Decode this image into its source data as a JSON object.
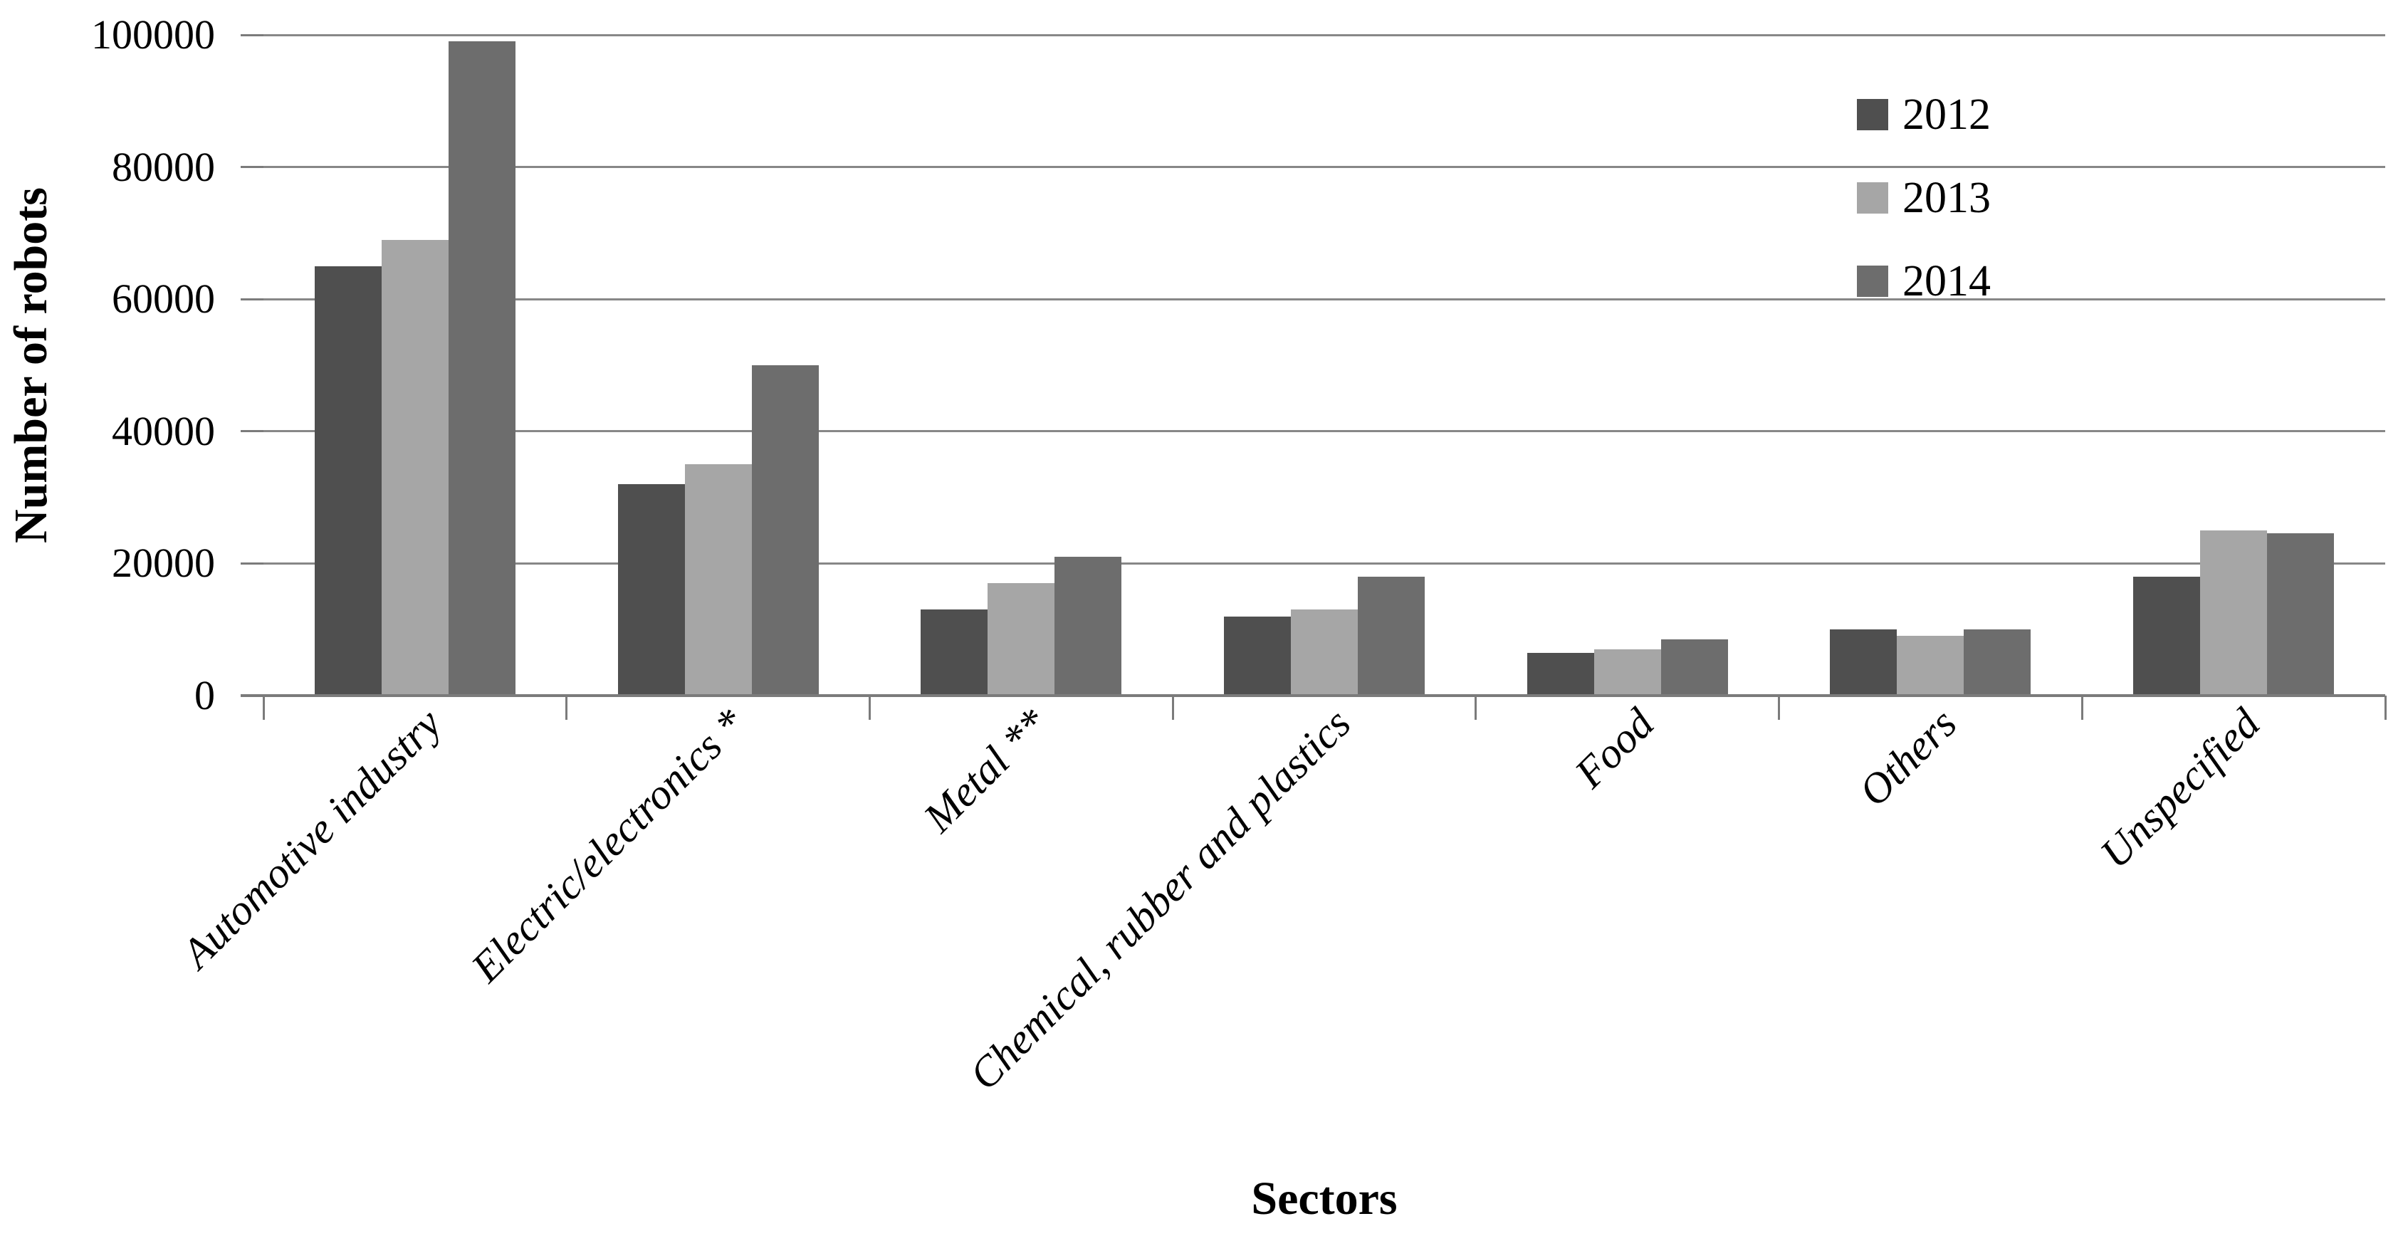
{
  "chart_data": {
    "type": "bar",
    "title": "",
    "xlabel": "Sectors",
    "ylabel": "Number of robots",
    "categories": [
      "Automotive industry",
      "Electric/electronics *",
      "Metal **",
      "Chemical, rubber and plastics",
      "Food",
      "Others",
      "Unspecified"
    ],
    "series": [
      {
        "name": "2012",
        "color": "#4f4f4f",
        "values": [
          65000,
          32000,
          13000,
          12000,
          6500,
          10000,
          18000
        ]
      },
      {
        "name": "2013",
        "color": "#a6a6a6",
        "values": [
          69000,
          35000,
          17000,
          13000,
          7000,
          9000,
          25000
        ]
      },
      {
        "name": "2014",
        "color": "#6d6d6d",
        "values": [
          99000,
          50000,
          21000,
          18000,
          8500,
          10000,
          24600
        ]
      }
    ],
    "ylim": [
      0,
      100000
    ],
    "y_ticks": [
      0,
      20000,
      40000,
      60000,
      80000,
      100000
    ],
    "grid": true,
    "legend_position": "upper-right",
    "gridline_color": "#878787",
    "axis_color": "#7b7b7b"
  },
  "axes": {
    "x_title": "Sectors",
    "y_title": "Number of robots"
  }
}
